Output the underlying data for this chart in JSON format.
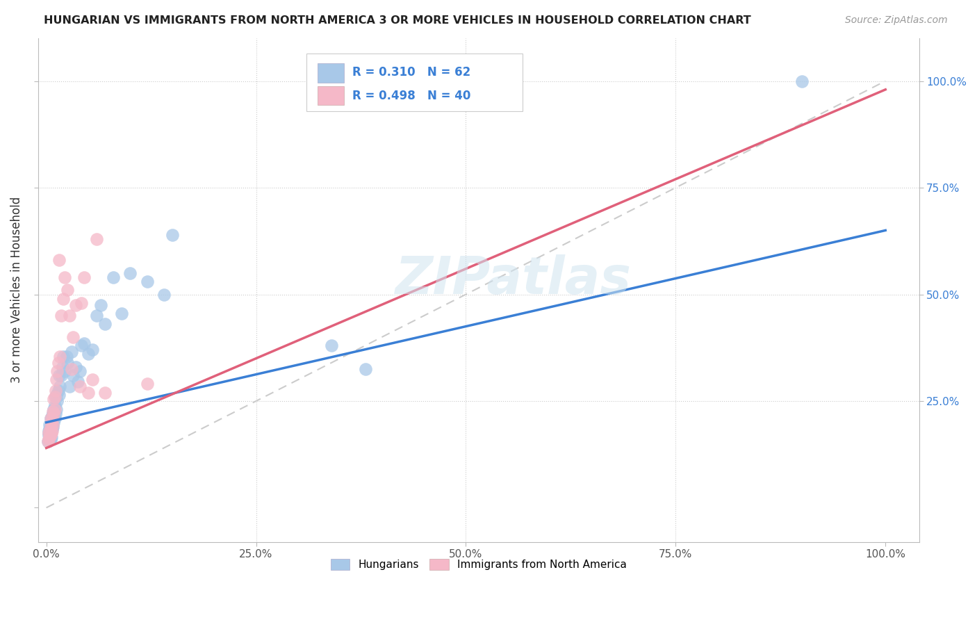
{
  "title": "HUNGARIAN VS IMMIGRANTS FROM NORTH AMERICA 3 OR MORE VEHICLES IN HOUSEHOLD CORRELATION CHART",
  "source": "Source: ZipAtlas.com",
  "ylabel": "3 or more Vehicles in Household",
  "R_blue": 0.31,
  "N_blue": 62,
  "R_pink": 0.498,
  "N_pink": 40,
  "blue_color": "#a8c8e8",
  "pink_color": "#f5b8c8",
  "blue_line_color": "#3a7fd5",
  "pink_line_color": "#e0607a",
  "diagonal_color": "#cccccc",
  "background_color": "#ffffff",
  "legend_blue_label": "Hungarians",
  "legend_pink_label": "Immigrants from North America",
  "watermark_text": "ZIPatlas",
  "blue_x": [
    0.002,
    0.003,
    0.003,
    0.003,
    0.004,
    0.004,
    0.004,
    0.004,
    0.005,
    0.005,
    0.005,
    0.005,
    0.006,
    0.006,
    0.006,
    0.007,
    0.007,
    0.007,
    0.008,
    0.008,
    0.008,
    0.009,
    0.009,
    0.01,
    0.01,
    0.011,
    0.011,
    0.012,
    0.012,
    0.013,
    0.014,
    0.015,
    0.015,
    0.016,
    0.018,
    0.019,
    0.02,
    0.022,
    0.024,
    0.025,
    0.028,
    0.03,
    0.032,
    0.035,
    0.038,
    0.04,
    0.042,
    0.045,
    0.05,
    0.055,
    0.06,
    0.065,
    0.07,
    0.08,
    0.09,
    0.1,
    0.12,
    0.14,
    0.15,
    0.34,
    0.38,
    0.9
  ],
  "blue_y": [
    0.155,
    0.17,
    0.18,
    0.175,
    0.16,
    0.17,
    0.185,
    0.195,
    0.16,
    0.175,
    0.195,
    0.21,
    0.165,
    0.185,
    0.21,
    0.185,
    0.2,
    0.215,
    0.19,
    0.205,
    0.22,
    0.2,
    0.23,
    0.21,
    0.24,
    0.22,
    0.26,
    0.23,
    0.265,
    0.25,
    0.275,
    0.265,
    0.31,
    0.285,
    0.31,
    0.33,
    0.355,
    0.32,
    0.355,
    0.34,
    0.285,
    0.365,
    0.31,
    0.33,
    0.295,
    0.32,
    0.38,
    0.385,
    0.36,
    0.37,
    0.45,
    0.475,
    0.43,
    0.54,
    0.455,
    0.55,
    0.53,
    0.5,
    0.64,
    0.38,
    0.325,
    1.0
  ],
  "pink_x": [
    0.002,
    0.003,
    0.003,
    0.004,
    0.004,
    0.005,
    0.005,
    0.005,
    0.006,
    0.006,
    0.007,
    0.007,
    0.008,
    0.008,
    0.009,
    0.009,
    0.01,
    0.01,
    0.011,
    0.012,
    0.013,
    0.014,
    0.015,
    0.016,
    0.018,
    0.02,
    0.022,
    0.025,
    0.028,
    0.03,
    0.032,
    0.035,
    0.04,
    0.042,
    0.045,
    0.05,
    0.055,
    0.06,
    0.07,
    0.12
  ],
  "pink_y": [
    0.155,
    0.16,
    0.175,
    0.165,
    0.18,
    0.17,
    0.19,
    0.21,
    0.175,
    0.2,
    0.18,
    0.21,
    0.195,
    0.225,
    0.22,
    0.255,
    0.23,
    0.26,
    0.275,
    0.3,
    0.32,
    0.34,
    0.58,
    0.355,
    0.45,
    0.49,
    0.54,
    0.51,
    0.45,
    0.325,
    0.4,
    0.475,
    0.285,
    0.48,
    0.54,
    0.27,
    0.3,
    0.63,
    0.27,
    0.29
  ]
}
